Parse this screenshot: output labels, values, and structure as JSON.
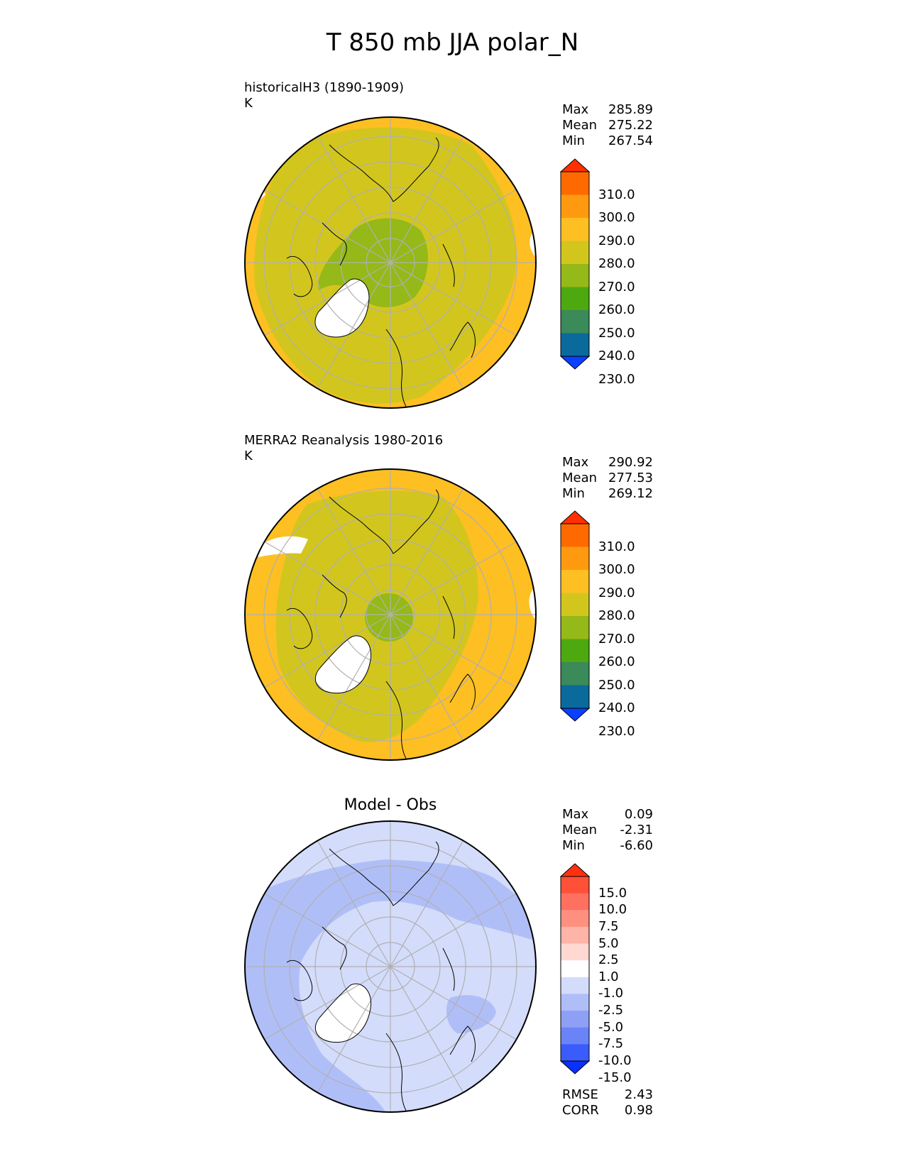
{
  "title": "T 850 mb JJA polar_N",
  "panels": [
    {
      "id": "model",
      "title_line1": "historicalH3 (1890-1909)",
      "title_line2": "K",
      "stats": [
        {
          "label": "Max",
          "value": "285.89"
        },
        {
          "label": "Mean",
          "value": "275.22"
        },
        {
          "label": "Min",
          "value": "267.54"
        }
      ]
    },
    {
      "id": "obs",
      "title_line1": "MERRA2 Reanalysis 1980-2016",
      "title_line2": "K",
      "stats": [
        {
          "label": "Max",
          "value": "290.92"
        },
        {
          "label": "Mean",
          "value": "277.53"
        },
        {
          "label": "Min",
          "value": "269.12"
        }
      ]
    },
    {
      "id": "diff",
      "title": "Model - Obs",
      "stats": [
        {
          "label": "Max",
          "value": "0.09"
        },
        {
          "label": "Mean",
          "value": "-2.31"
        },
        {
          "label": "Min",
          "value": "-6.60"
        }
      ],
      "metrics": [
        {
          "label": "RMSE",
          "value": "2.43"
        },
        {
          "label": "CORR",
          "value": "0.98"
        }
      ]
    }
  ],
  "colorbars": {
    "field": {
      "labels": [
        "310.0",
        "300.0",
        "290.0",
        "280.0",
        "270.0",
        "260.0",
        "250.0",
        "240.0",
        "230.0"
      ],
      "colors_top_to_bottom": [
        "#ff3000",
        "#ff6a00",
        "#ff9a10",
        "#fdbf22",
        "#d2c61e",
        "#94b918",
        "#4ea80f",
        "#3a8a5a",
        "#0a6a9c",
        "#0a40ff"
      ]
    },
    "diff": {
      "labels": [
        "15.0",
        "10.0",
        "7.5",
        "5.0",
        "2.5",
        "1.0",
        "-1.0",
        "-2.5",
        "-5.0",
        "-7.5",
        "-10.0",
        "-15.0"
      ],
      "colors_top_to_bottom": [
        "#ff3010",
        "#ff5038",
        "#ff7060",
        "#ff9080",
        "#ffb4a8",
        "#ffd8d2",
        "#ffffff",
        "#d4dcfb",
        "#b0bef8",
        "#8ea0f6",
        "#6a84f8",
        "#3a5cfc",
        "#0a30ff"
      ]
    }
  },
  "map_colors": {
    "background_orange": "#fdbf22",
    "mid_olive": "#d2c61e",
    "core_green": "#94b918",
    "greenland_white": "#ffffff",
    "diff_base": "#b0bef8",
    "diff_light": "#d4dcfb",
    "diff_mid": "#8ea0f6",
    "grid": "#b0b0b0",
    "coast": "#000000"
  }
}
